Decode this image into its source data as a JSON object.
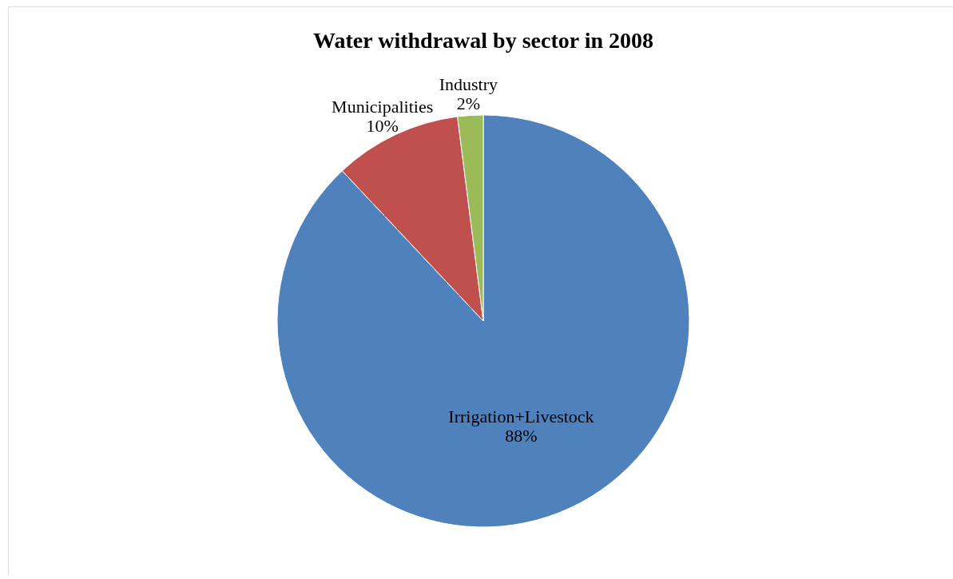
{
  "chart_data": {
    "type": "pie",
    "title": "Water withdrawal by sector in 2008",
    "categories": [
      "Irrigation+Livestock",
      "Municipalities",
      "Industry"
    ],
    "values": [
      88,
      10,
      2
    ],
    "colors": [
      "#4f81bd",
      "#c0504d",
      "#9bbb59"
    ],
    "value_labels": [
      "88%",
      "10%",
      "2%"
    ]
  }
}
